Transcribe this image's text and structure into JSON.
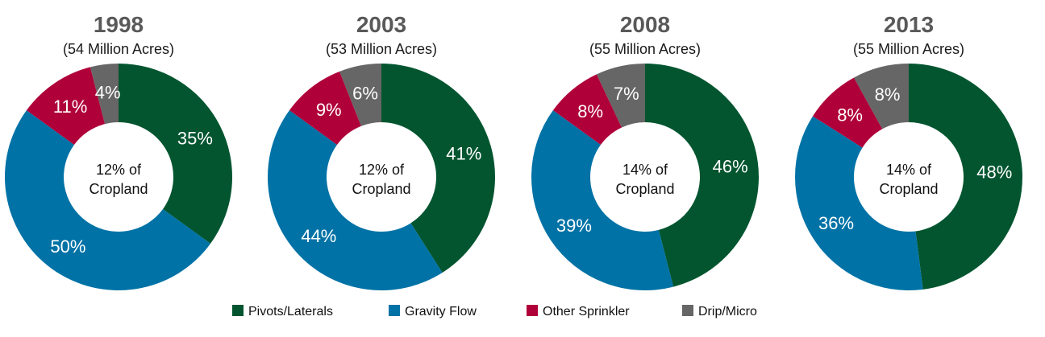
{
  "chart_data": [
    {
      "type": "pie",
      "title": "1998",
      "subtitle": "(54 Million Acres)",
      "center_line1": "12% of",
      "center_line2": "Cropland",
      "categories": [
        "Pivots/Laterals",
        "Gravity Flow",
        "Other Sprinkler",
        "Drip/Micro"
      ],
      "values": [
        35,
        50,
        11,
        4
      ],
      "labels": [
        "35%",
        "50%",
        "11%",
        "4%"
      ]
    },
    {
      "type": "pie",
      "title": "2003",
      "subtitle": "(53 Million Acres)",
      "center_line1": "12% of",
      "center_line2": "Cropland",
      "categories": [
        "Pivots/Laterals",
        "Gravity Flow",
        "Other Sprinkler",
        "Drip/Micro"
      ],
      "values": [
        41,
        44,
        9,
        6
      ],
      "labels": [
        "41%",
        "44%",
        "9%",
        "6%"
      ]
    },
    {
      "type": "pie",
      "title": "2008",
      "subtitle": "(55 Million Acres)",
      "center_line1": "14% of",
      "center_line2": "Cropland",
      "categories": [
        "Pivots/Laterals",
        "Gravity Flow",
        "Other Sprinkler",
        "Drip/Micro"
      ],
      "values": [
        46,
        39,
        8,
        7
      ],
      "labels": [
        "46%",
        "39%",
        "8%",
        "7%"
      ]
    },
    {
      "type": "pie",
      "title": "2013",
      "subtitle": "(55 Million Acres)",
      "center_line1": "14% of",
      "center_line2": "Cropland",
      "categories": [
        "Pivots/Laterals",
        "Gravity Flow",
        "Other Sprinkler",
        "Drip/Micro"
      ],
      "values": [
        48,
        36,
        8,
        8
      ],
      "labels": [
        "48%",
        "36%",
        "8%",
        "8%"
      ]
    }
  ],
  "legend": [
    {
      "label": "Pivots/Laterals",
      "color": "#02552f"
    },
    {
      "label": "Gravity Flow",
      "color": "#0072a6"
    },
    {
      "label": "Other Sprinkler",
      "color": "#b0003a"
    },
    {
      "label": "Drip/Micro",
      "color": "#666666"
    }
  ],
  "legend_position": "bottom-center"
}
